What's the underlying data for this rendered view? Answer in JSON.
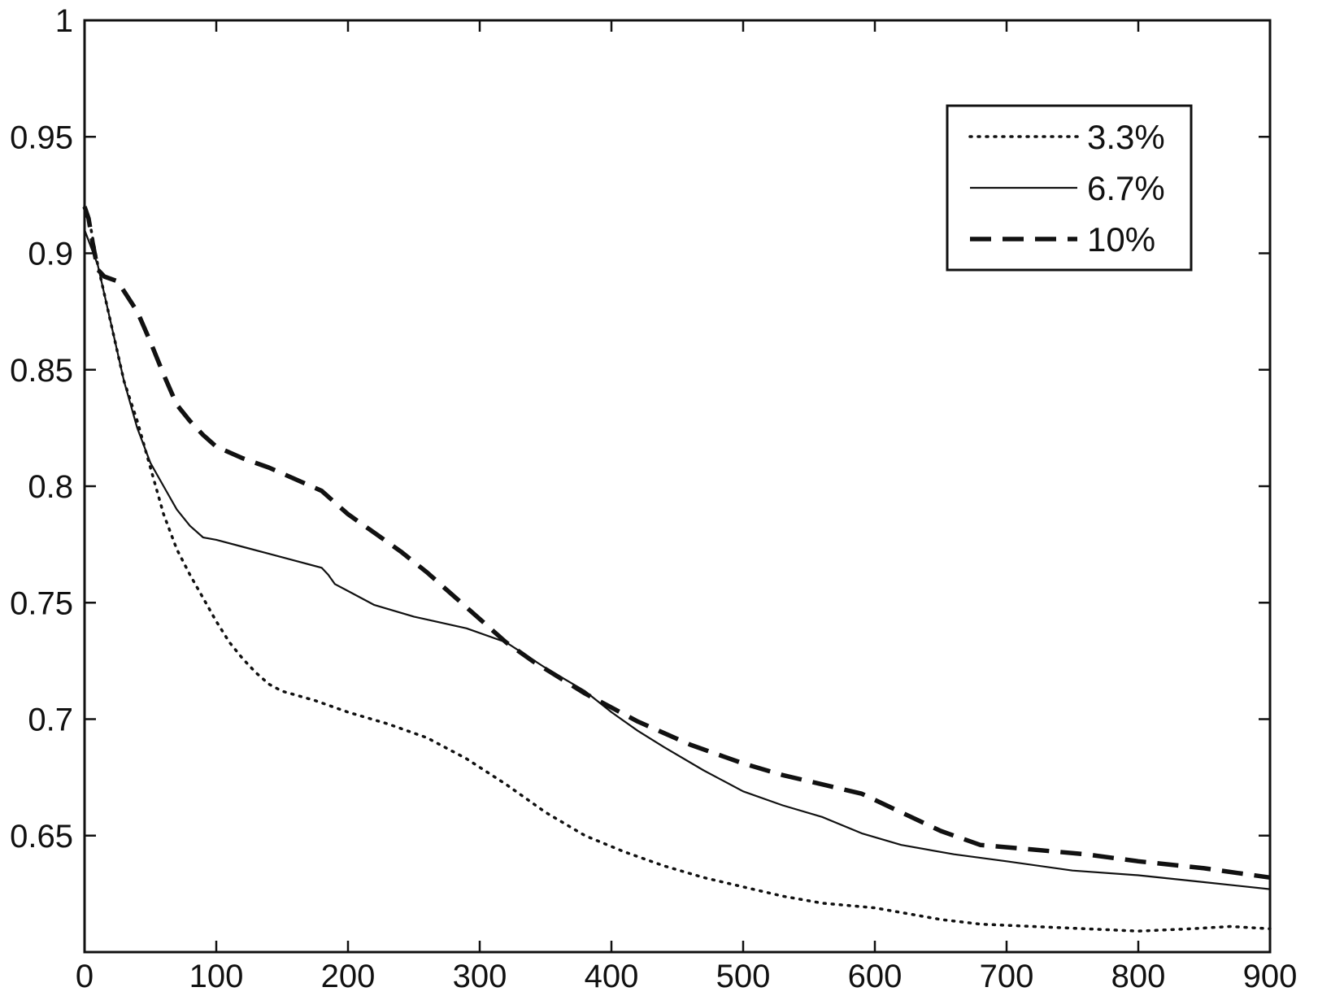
{
  "chart_data": {
    "type": "line",
    "title": "",
    "xlabel": "",
    "ylabel": "",
    "xlim": [
      0,
      900
    ],
    "ylim": [
      0.6,
      1.0
    ],
    "x_ticks": [
      0,
      100,
      200,
      300,
      400,
      500,
      600,
      700,
      800,
      900
    ],
    "x_tick_labels": [
      "0",
      "100",
      "200",
      "300",
      "400",
      "500",
      "600",
      "700",
      "800",
      "900"
    ],
    "y_ticks": [
      0.65,
      0.7,
      0.75,
      0.8,
      0.85,
      0.9,
      0.95,
      1.0
    ],
    "y_tick_labels": [
      "0.65",
      "0.7",
      "0.75",
      "0.8",
      "0.85",
      "0.9",
      "0.95",
      "1"
    ],
    "grid": false,
    "legend": {
      "position": "top-right"
    },
    "series": [
      {
        "name": "3.3%",
        "style": "dotted",
        "color": "#111111",
        "x": [
          0,
          5,
          10,
          20,
          30,
          40,
          50,
          60,
          70,
          80,
          90,
          100,
          110,
          120,
          130,
          140,
          150,
          175,
          200,
          230,
          260,
          290,
          320,
          350,
          380,
          410,
          440,
          470,
          500,
          530,
          560,
          600,
          650,
          680,
          720,
          760,
          800,
          840,
          870,
          900
        ],
        "y": [
          0.92,
          0.91,
          0.895,
          0.87,
          0.845,
          0.828,
          0.808,
          0.788,
          0.773,
          0.762,
          0.752,
          0.742,
          0.733,
          0.726,
          0.72,
          0.715,
          0.712,
          0.708,
          0.703,
          0.698,
          0.692,
          0.683,
          0.672,
          0.66,
          0.65,
          0.643,
          0.637,
          0.632,
          0.628,
          0.624,
          0.621,
          0.619,
          0.614,
          0.612,
          0.611,
          0.61,
          0.609,
          0.61,
          0.611,
          0.61
        ]
      },
      {
        "name": "6.7%",
        "style": "solid",
        "color": "#111111",
        "x": [
          0,
          10,
          20,
          30,
          40,
          50,
          60,
          70,
          80,
          90,
          100,
          120,
          140,
          160,
          180,
          185,
          190,
          200,
          220,
          250,
          290,
          320,
          350,
          380,
          400,
          420,
          440,
          470,
          500,
          530,
          560,
          590,
          620,
          660,
          700,
          750,
          800,
          850,
          900
        ],
        "y": [
          0.91,
          0.895,
          0.87,
          0.845,
          0.825,
          0.81,
          0.8,
          0.79,
          0.783,
          0.778,
          0.777,
          0.774,
          0.771,
          0.768,
          0.765,
          0.762,
          0.758,
          0.755,
          0.749,
          0.744,
          0.739,
          0.733,
          0.722,
          0.712,
          0.703,
          0.695,
          0.688,
          0.678,
          0.669,
          0.663,
          0.658,
          0.651,
          0.646,
          0.642,
          0.639,
          0.635,
          0.633,
          0.63,
          0.627
        ]
      },
      {
        "name": "10%",
        "style": "dashed",
        "color": "#111111",
        "x": [
          0,
          3,
          6,
          10,
          15,
          25,
          40,
          50,
          60,
          70,
          80,
          90,
          100,
          120,
          140,
          160,
          180,
          200,
          220,
          240,
          260,
          280,
          300,
          320,
          340,
          360,
          380,
          400,
          420,
          440,
          460,
          480,
          500,
          530,
          560,
          590,
          620,
          650,
          680,
          720,
          760,
          800,
          850,
          900
        ],
        "y": [
          0.92,
          0.915,
          0.905,
          0.893,
          0.89,
          0.888,
          0.875,
          0.862,
          0.848,
          0.835,
          0.828,
          0.822,
          0.817,
          0.812,
          0.808,
          0.803,
          0.798,
          0.788,
          0.78,
          0.772,
          0.763,
          0.753,
          0.743,
          0.733,
          0.725,
          0.718,
          0.711,
          0.705,
          0.699,
          0.694,
          0.689,
          0.685,
          0.681,
          0.676,
          0.672,
          0.668,
          0.66,
          0.652,
          0.646,
          0.644,
          0.642,
          0.639,
          0.636,
          0.632
        ]
      }
    ]
  }
}
